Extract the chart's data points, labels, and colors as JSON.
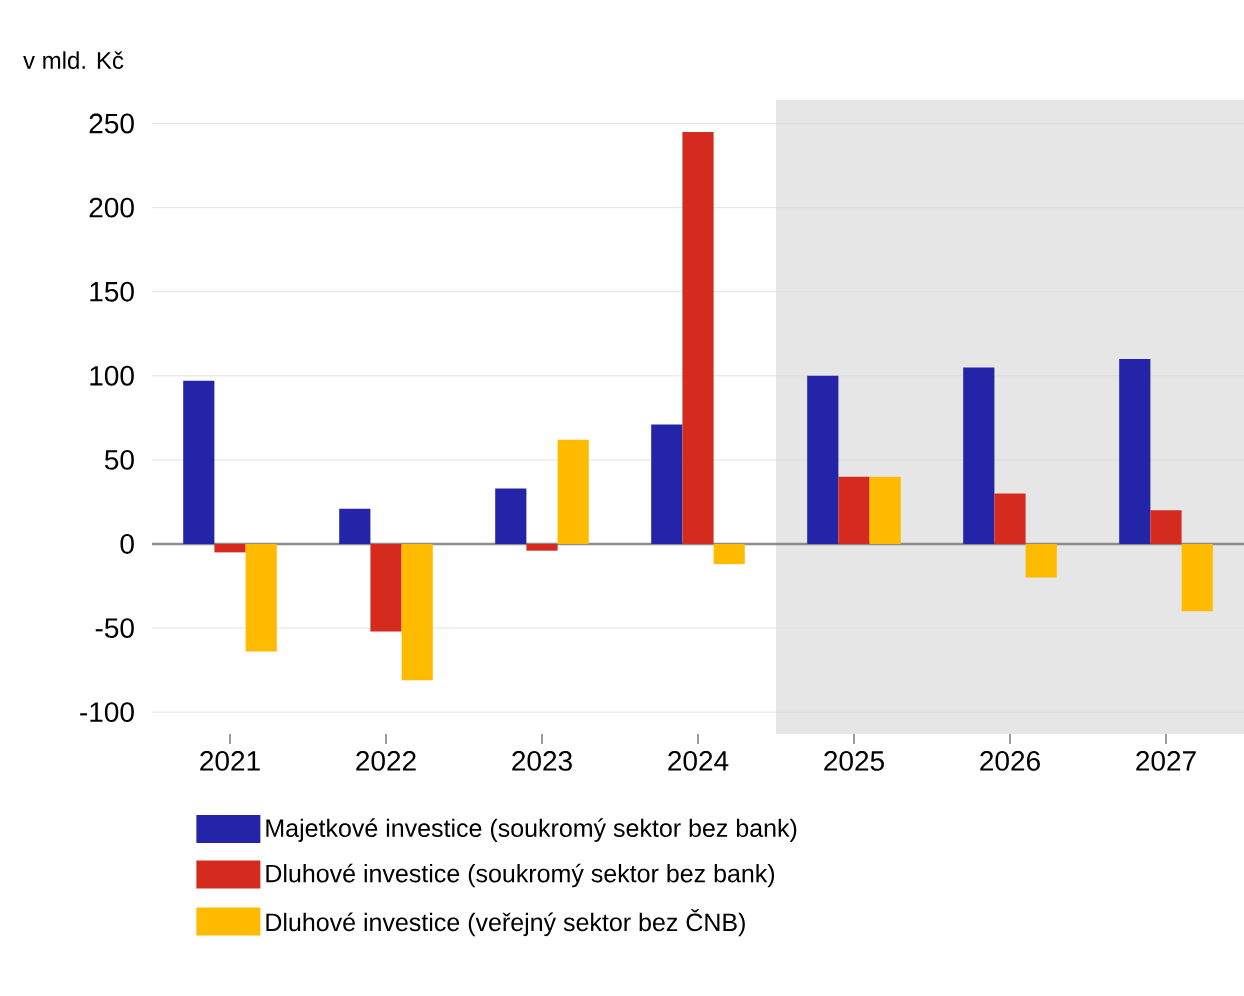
{
  "chart_data": {
    "type": "bar",
    "ylabel": "v mld. Kč",
    "categories": [
      "2021",
      "2022",
      "2023",
      "2024",
      "2025",
      "2026",
      "2027"
    ],
    "series": [
      {
        "name": "Majetkové investice (soukromý sektor bez bank)",
        "color": "#2424a8",
        "values": [
          97,
          21,
          33,
          71,
          100,
          105,
          110
        ]
      },
      {
        "name": "Dluhové investice (soukromý sektor bez bank)",
        "color": "#d52b1e",
        "values": [
          -5,
          -52,
          -4,
          245,
          40,
          30,
          20
        ]
      },
      {
        "name": "Dluhové investice (veřejný sektor bez ČNB)",
        "color": "#ffbb00",
        "values": [
          -64,
          -81,
          62,
          -12,
          40,
          -20,
          -40
        ]
      }
    ],
    "ylim": [
      -113,
      264
    ],
    "yticks": [
      -100,
      -50,
      0,
      50,
      100,
      150,
      200,
      250
    ],
    "grid": "y",
    "legend": "bottom",
    "bands": [
      {
        "axis": "x",
        "from": "2025",
        "to": "2027",
        "color": "#e6e6e6"
      }
    ]
  }
}
